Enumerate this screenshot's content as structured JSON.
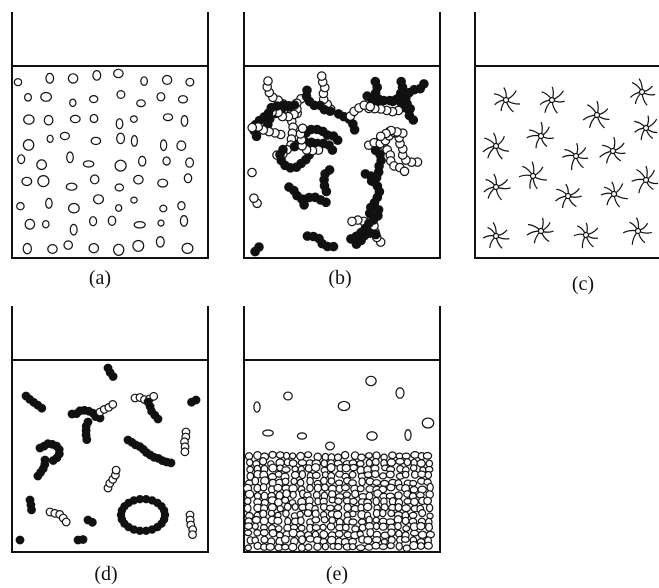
{
  "figure": {
    "panels": [
      {
        "id": "a",
        "caption": "(a)",
        "contents": "dispersed-droplets"
      },
      {
        "id": "b",
        "caption": "(b)",
        "contents": "gel-network"
      },
      {
        "id": "c",
        "caption": "(c)",
        "contents": "star-polymers"
      },
      {
        "id": "d",
        "caption": "(d)",
        "contents": "flocculated-aggregates"
      },
      {
        "id": "e",
        "caption": "(e)",
        "contents": "sedimented-particles"
      }
    ],
    "colors": {
      "ink": "#111111",
      "background": "#ffffff"
    }
  }
}
